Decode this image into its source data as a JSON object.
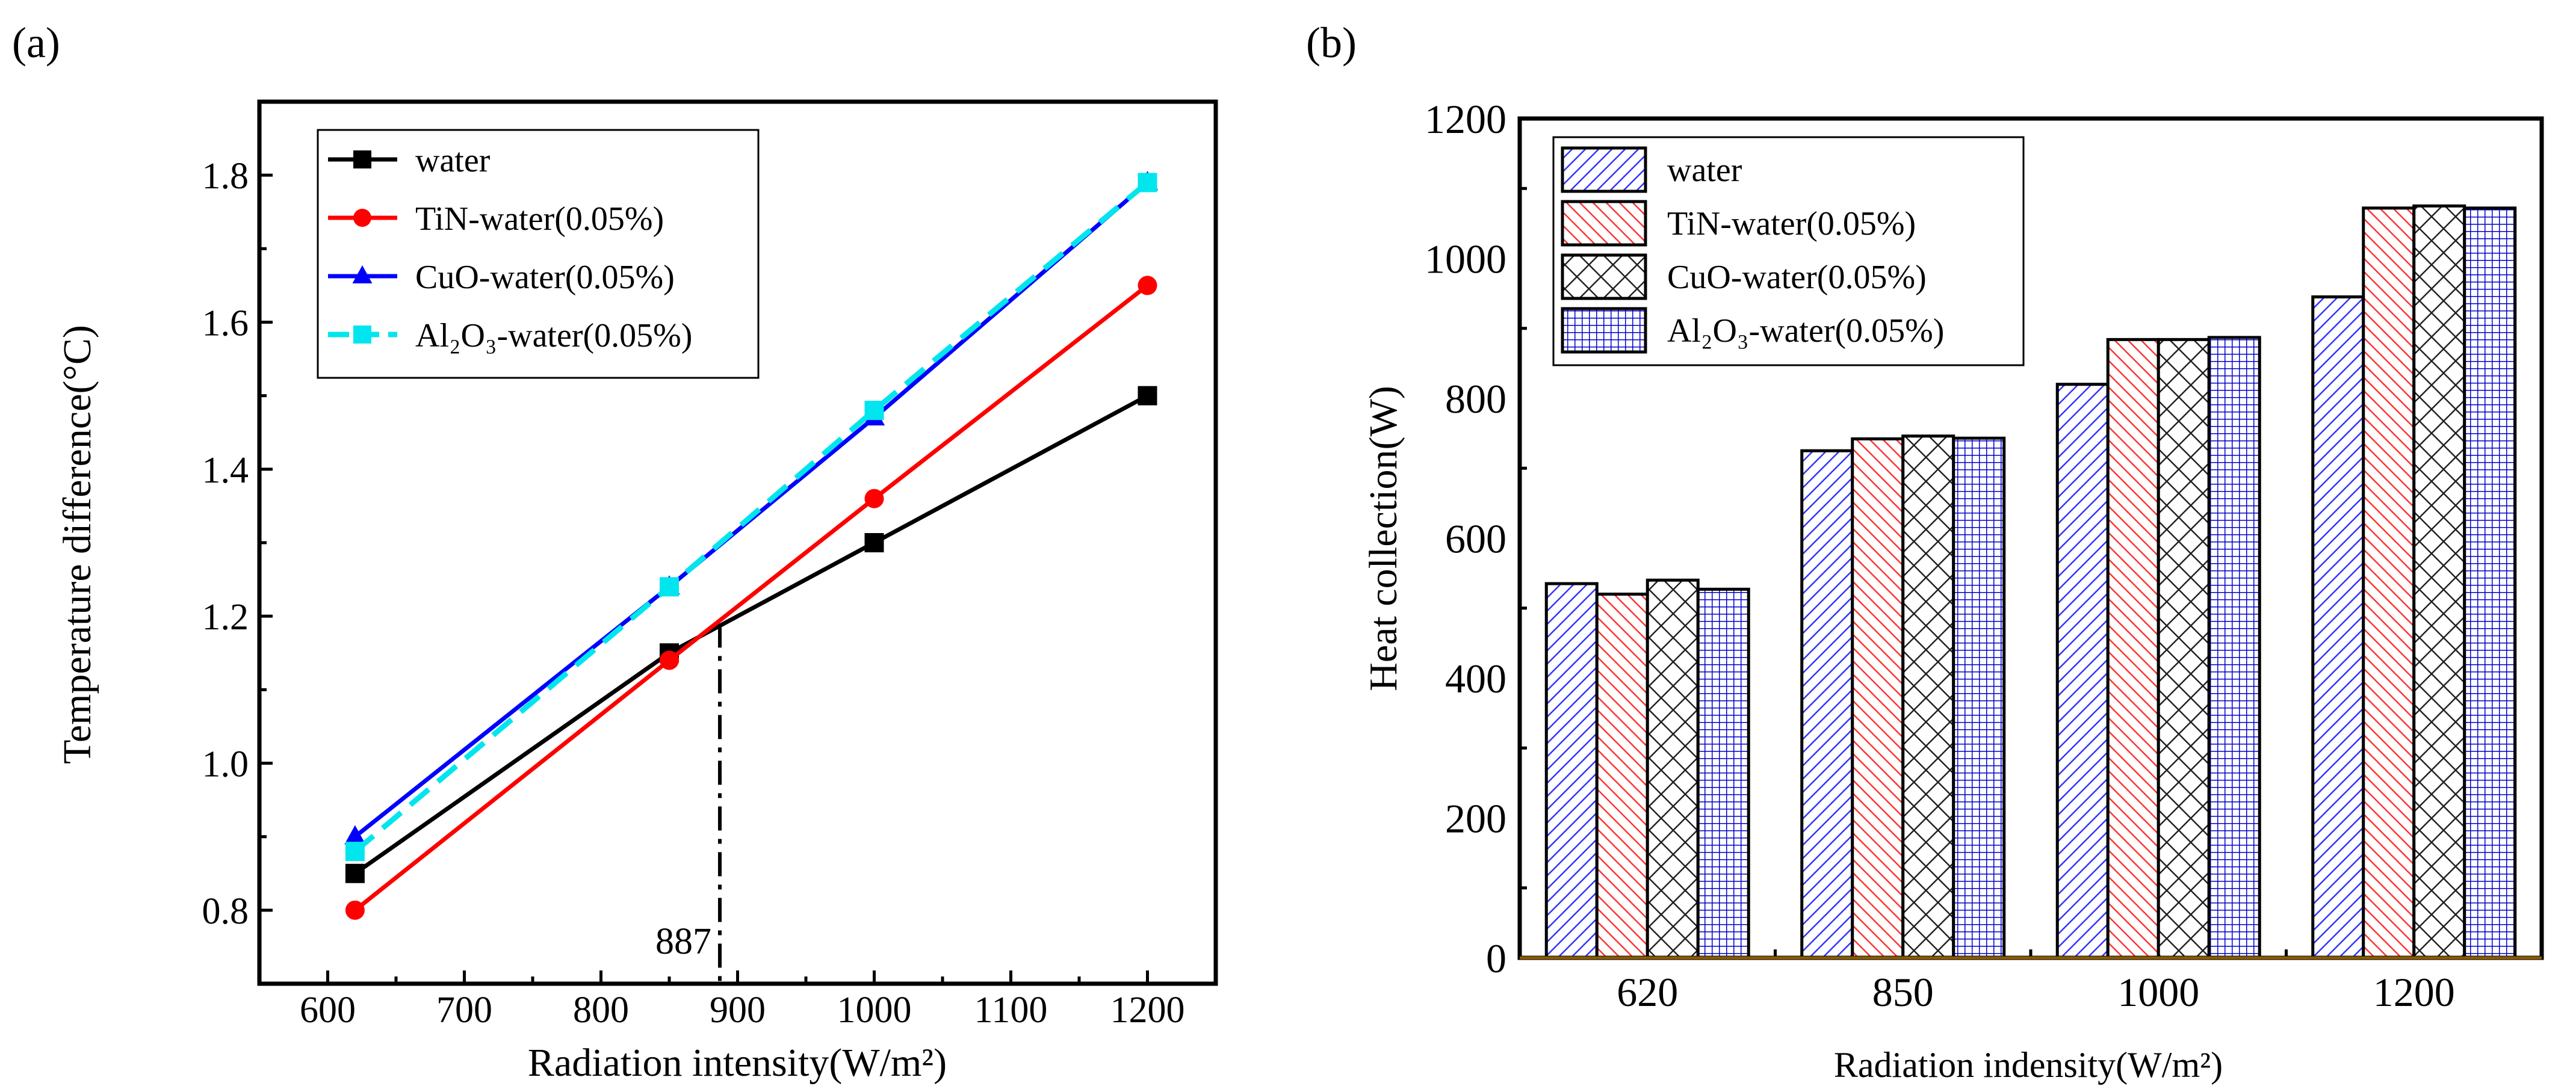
{
  "chart_data": [
    {
      "type": "line",
      "panel_label": "(a)",
      "xlabel": "Radiation intensity(W/m²)",
      "ylabel": "Temperature  difference(°C)",
      "xlim": [
        550,
        1250
      ],
      "ylim": [
        0.7,
        1.9
      ],
      "xticks": [
        600,
        700,
        800,
        900,
        1000,
        1100,
        1200
      ],
      "yticks": [
        0.8,
        1.0,
        1.2,
        1.4,
        1.6,
        1.8
      ],
      "ytick_labels": [
        "0.8",
        "1.0",
        "1.2",
        "1.4",
        "1.6",
        "1.8"
      ],
      "grid": false,
      "legend_position": "top-left",
      "x": [
        620,
        850,
        1000,
        1200
      ],
      "series": [
        {
          "name": "water",
          "color": "#000000",
          "marker": "square",
          "dash": false,
          "values": [
            0.85,
            1.15,
            1.3,
            1.5
          ]
        },
        {
          "name": "TiN-water(0.05%)",
          "color": "#ff0000",
          "marker": "circle",
          "dash": false,
          "values": [
            0.8,
            1.14,
            1.36,
            1.65
          ]
        },
        {
          "name": "CuO-water(0.05%)",
          "color": "#0000ff",
          "marker": "triangle",
          "dash": false,
          "values": [
            0.9,
            1.24,
            1.47,
            1.79
          ]
        },
        {
          "name": "Al₂O₃-water(0.05%)",
          "color": "#00e5ee",
          "marker": "square",
          "dash": true,
          "values": [
            0.88,
            1.24,
            1.48,
            1.79
          ]
        }
      ],
      "annotation": {
        "text": "887",
        "x": 887,
        "y_top": 1.19
      }
    },
    {
      "type": "bar",
      "panel_label": "(b)",
      "xlabel": "Radiation indensity(W/m²)",
      "ylabel": "Heat collection(W)",
      "ylim": [
        0,
        1200
      ],
      "yticks": [
        0,
        200,
        400,
        600,
        800,
        1000,
        1200
      ],
      "grid": false,
      "legend_position": "top-left",
      "categories": [
        "620",
        "850",
        "1000",
        "1200"
      ],
      "series": [
        {
          "name": "water",
          "color": "#3333ff",
          "pattern": "diag-right",
          "values": [
            535,
            725,
            820,
            945
          ]
        },
        {
          "name": "TiN-water(0.05%)",
          "color": "#ff3333",
          "pattern": "diag-left",
          "values": [
            520,
            742,
            884,
            1072
          ]
        },
        {
          "name": "CuO-water(0.05%)",
          "color": "#000000",
          "pattern": "cross",
          "values": [
            540,
            746,
            884,
            1075
          ]
        },
        {
          "name": "Al₂O₃-water(0.05%)",
          "color": "#0000cc",
          "pattern": "grid",
          "values": [
            527,
            743,
            887,
            1072
          ]
        }
      ]
    }
  ]
}
